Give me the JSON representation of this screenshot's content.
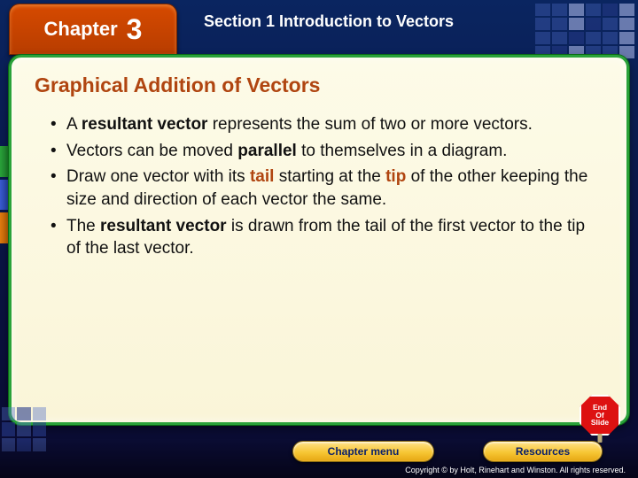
{
  "header": {
    "chapter_label": "Chapter",
    "chapter_number": "3",
    "section_title": "Section 1 Introduction to Vectors"
  },
  "panel": {
    "title": "Graphical Addition of Vectors",
    "bullets": [
      {
        "pre": "A ",
        "b": "resultant vector",
        "post": " represents the sum of two or more vectors."
      },
      {
        "pre": "Vectors can be moved ",
        "b": "parallel",
        "post": " to themselves in a diagram."
      },
      {
        "pre": "Draw one vector with its ",
        "kw": "tail",
        "mid": " starting at the ",
        "kw2": "tip",
        "post": " of the other keeping the size and direction of each vector the same."
      },
      {
        "pre": "The ",
        "b": "resultant vector",
        "post": " is drawn from the tail of the first vector to the tip of the last vector."
      }
    ]
  },
  "footer": {
    "chapter_menu": "Chapter menu",
    "resources": "Resources",
    "eos": "End\nOf\nSlide",
    "copyright": "Copyright © by Holt, Rinehart and Winston. All rights reserved."
  },
  "colors": {
    "accent_orange": "#b04510",
    "panel_border": "#2aa23a",
    "bg_top": "#0a2560"
  }
}
